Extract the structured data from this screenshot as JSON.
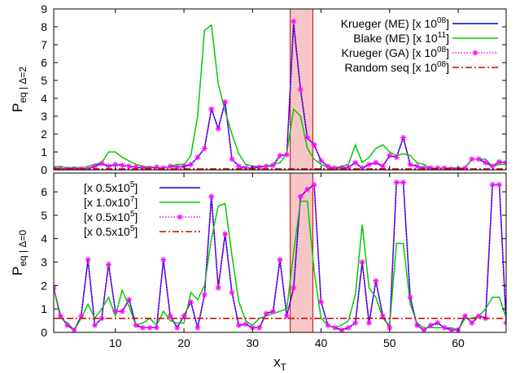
{
  "chart_data": [
    {
      "type": "line",
      "panel": "top",
      "ylabel": "P",
      "ylabel_sub": "eq | Δ=2",
      "xlim": [
        1,
        67
      ],
      "ylim": [
        0,
        9
      ],
      "yticks": [
        "0",
        "1",
        "2",
        "3",
        "4",
        "5",
        "6",
        "7",
        "8",
        "9"
      ],
      "highlight_band": [
        35.5,
        38.8
      ],
      "legend_position": "top-right",
      "series": [
        {
          "name": "Krueger (ME) [x 10^08]",
          "name_parts": [
            "Krueger (ME) [x 10",
            "08",
            "]"
          ],
          "color": "#0000cc",
          "style": "solid",
          "x": [
            1,
            2,
            3,
            4,
            5,
            6,
            7,
            8,
            9,
            10,
            11,
            12,
            13,
            14,
            15,
            16,
            17,
            18,
            19,
            20,
            21,
            22,
            23,
            24,
            25,
            26,
            27,
            28,
            29,
            30,
            31,
            32,
            33,
            34,
            35,
            36,
            37,
            38,
            39,
            40,
            41,
            42,
            43,
            44,
            45,
            46,
            47,
            48,
            49,
            50,
            51,
            52,
            53,
            54,
            55,
            56,
            57,
            58,
            59,
            60,
            61,
            62,
            63,
            64,
            65,
            66,
            67
          ],
          "y": [
            0.1,
            0.05,
            0.05,
            0.05,
            0.05,
            0.05,
            0.2,
            0.35,
            0.2,
            0.3,
            0.25,
            0.2,
            0.15,
            0.1,
            0.1,
            0.15,
            0.1,
            0.2,
            0.15,
            0.2,
            0.3,
            0.7,
            1.2,
            3.4,
            2.3,
            3.8,
            0.6,
            0.2,
            0.1,
            0.1,
            0.15,
            0.2,
            0.25,
            0.8,
            0.85,
            8.2,
            4.5,
            1.8,
            1.4,
            0.5,
            0.2,
            0.1,
            0.1,
            0.15,
            0.4,
            0.1,
            0.3,
            0.4,
            0.2,
            0.8,
            0.7,
            1.8,
            0.3,
            0.2,
            0.1,
            0.1,
            0.1,
            0.1,
            0.05,
            0.05,
            0.1,
            0.6,
            0.6,
            0.4,
            0.2,
            0.45,
            0.4
          ]
        },
        {
          "name": "Blake (ME) [x 10^11]",
          "name_parts": [
            "Blake (ME) [x 10",
            "11",
            "]"
          ],
          "color": "#00cc00",
          "style": "solid",
          "x": [
            1,
            2,
            3,
            4,
            5,
            6,
            7,
            8,
            9,
            10,
            11,
            12,
            13,
            14,
            15,
            16,
            17,
            18,
            19,
            20,
            21,
            22,
            23,
            24,
            25,
            26,
            27,
            28,
            29,
            30,
            31,
            32,
            33,
            34,
            35,
            36,
            37,
            38,
            39,
            40,
            41,
            42,
            43,
            44,
            45,
            46,
            47,
            48,
            49,
            50,
            51,
            52,
            53,
            54,
            55,
            56,
            57,
            58,
            59,
            60,
            61,
            62,
            63,
            64,
            65,
            66,
            67
          ],
          "y": [
            0.15,
            0.2,
            0.1,
            0.15,
            0.1,
            0.2,
            0.3,
            0.4,
            1.0,
            1.0,
            0.7,
            0.5,
            0.3,
            0.2,
            0.15,
            0.15,
            0.1,
            0.2,
            0.3,
            0.3,
            0.8,
            3.0,
            7.8,
            8.1,
            4.8,
            3.3,
            2.0,
            0.9,
            0.3,
            0.2,
            0.2,
            0.2,
            0.3,
            0.4,
            0.9,
            3.4,
            3.0,
            1.2,
            0.6,
            0.3,
            0.15,
            0.1,
            0.2,
            0.3,
            1.4,
            0.4,
            0.7,
            1.2,
            1.4,
            1.0,
            0.8,
            0.9,
            0.8,
            0.4,
            0.3,
            0.1,
            0.1,
            0.1,
            0.1,
            0.1,
            0.1,
            0.6,
            0.6,
            0.6,
            0.2,
            0.3,
            0.3
          ]
        },
        {
          "name": "Krueger (GA) [x 10^08]",
          "name_parts": [
            "Krueger (GA) [x 10",
            "08",
            "]"
          ],
          "color": "#ff00ff",
          "style": "dotted-markers",
          "x": [
            1,
            2,
            3,
            4,
            5,
            6,
            7,
            8,
            9,
            10,
            11,
            12,
            13,
            14,
            15,
            16,
            17,
            18,
            19,
            20,
            21,
            22,
            23,
            24,
            25,
            26,
            27,
            28,
            29,
            30,
            31,
            32,
            33,
            34,
            35,
            36,
            37,
            38,
            39,
            40,
            41,
            42,
            43,
            44,
            45,
            46,
            47,
            48,
            49,
            50,
            51,
            52,
            53,
            54,
            55,
            56,
            57,
            58,
            59,
            60,
            61,
            62,
            63,
            64,
            65,
            66,
            67
          ],
          "y": [
            0.1,
            0.05,
            0.05,
            0.05,
            0.05,
            0.05,
            0.2,
            0.35,
            0.2,
            0.3,
            0.25,
            0.2,
            0.15,
            0.1,
            0.1,
            0.15,
            0.1,
            0.2,
            0.15,
            0.2,
            0.3,
            0.7,
            1.2,
            3.4,
            2.3,
            3.8,
            0.6,
            0.2,
            0.1,
            0.1,
            0.15,
            0.2,
            0.25,
            0.8,
            0.85,
            8.3,
            4.5,
            1.8,
            1.4,
            0.5,
            0.2,
            0.1,
            0.1,
            0.15,
            0.4,
            0.1,
            0.3,
            0.4,
            0.2,
            0.8,
            0.7,
            1.8,
            0.3,
            0.2,
            0.1,
            0.1,
            0.1,
            0.1,
            0.05,
            0.05,
            0.1,
            0.6,
            0.6,
            0.4,
            0.2,
            0.45,
            0.4
          ]
        },
        {
          "name": "Random seq [x 10^08]",
          "name_parts": [
            "Random seq [x 10",
            "08",
            "]"
          ],
          "color": "#cc0000",
          "style": "dashdot",
          "x": [
            1,
            67
          ],
          "y": [
            0.05,
            0.05
          ]
        }
      ]
    },
    {
      "type": "line",
      "panel": "bottom",
      "ylabel": "P",
      "ylabel_sub": "eq | Δ=0",
      "xlabel": "x",
      "xlabel_sub": "T",
      "xlim": [
        1,
        67
      ],
      "ylim": [
        0,
        6.8
      ],
      "xticks": [
        "10",
        "20",
        "30",
        "40",
        "50",
        "60"
      ],
      "xtick_values": [
        10,
        20,
        30,
        40,
        50,
        60
      ],
      "yticks": [
        "0",
        "1",
        "2",
        "3",
        "4",
        "5",
        "6"
      ],
      "highlight_band": [
        35.5,
        38.8
      ],
      "legend_position": "top-left",
      "series": [
        {
          "name": "[x 0.5x10^5]",
          "name_parts": [
            "[x 0.5x10",
            "5",
            "]"
          ],
          "color": "#0000cc",
          "style": "solid",
          "x": [
            1,
            2,
            3,
            4,
            5,
            6,
            7,
            8,
            9,
            10,
            11,
            12,
            13,
            14,
            15,
            16,
            17,
            18,
            19,
            20,
            21,
            22,
            23,
            24,
            25,
            26,
            27,
            28,
            29,
            30,
            31,
            32,
            33,
            34,
            35,
            36,
            37,
            38,
            39,
            40,
            41,
            42,
            43,
            44,
            45,
            46,
            47,
            48,
            49,
            50,
            51,
            52,
            53,
            54,
            55,
            56,
            57,
            58,
            59,
            60,
            61,
            62,
            63,
            64,
            65,
            66,
            67
          ],
          "y": [
            1.9,
            0.7,
            0.3,
            0.1,
            0.7,
            3.1,
            0.3,
            0.6,
            2.9,
            0.9,
            0.9,
            1.4,
            0.3,
            0.2,
            0.2,
            0.2,
            3.1,
            0.7,
            0.2,
            0.7,
            1.3,
            0.2,
            1.6,
            5.8,
            1.9,
            4.2,
            1.7,
            0.3,
            0.35,
            0.2,
            0.2,
            0.8,
            0.9,
            3.1,
            0.7,
            1.9,
            5.8,
            6.1,
            6.3,
            1.3,
            0.3,
            0.2,
            0.1,
            0.2,
            0.4,
            3.0,
            0.4,
            2.2,
            0.7,
            0.2,
            6.4,
            6.4,
            1.5,
            0.3,
            0.1,
            0.3,
            0.4,
            0.2,
            0.1,
            0.1,
            0.7,
            0.4,
            0.7,
            0.6,
            6.3,
            6.3,
            0.4
          ]
        },
        {
          "name": "[x 1.0x10^7]",
          "name_parts": [
            "[x 1.0x10",
            "7",
            "]"
          ],
          "color": "#00cc00",
          "style": "solid",
          "x": [
            1,
            2,
            3,
            4,
            5,
            6,
            7,
            8,
            9,
            10,
            11,
            12,
            13,
            14,
            15,
            16,
            17,
            18,
            19,
            20,
            21,
            22,
            23,
            24,
            25,
            26,
            27,
            28,
            29,
            30,
            31,
            32,
            33,
            34,
            35,
            36,
            37,
            38,
            39,
            40,
            41,
            42,
            43,
            44,
            45,
            46,
            47,
            48,
            49,
            50,
            51,
            52,
            53,
            54,
            55,
            56,
            57,
            58,
            59,
            60,
            61,
            62,
            63,
            64,
            65,
            66,
            67
          ],
          "y": [
            1.9,
            0.6,
            0.4,
            0.1,
            0.6,
            1.2,
            0.6,
            1.0,
            1.5,
            0.7,
            1.8,
            1.1,
            0.3,
            0.4,
            0.6,
            0.3,
            0.9,
            0.5,
            0.4,
            0.4,
            1.7,
            1.4,
            2.0,
            4.0,
            5.4,
            5.5,
            3.3,
            1.3,
            0.5,
            0.3,
            0.6,
            0.7,
            0.8,
            0.9,
            1.0,
            3.4,
            5.6,
            5.6,
            2.6,
            0.6,
            0.3,
            0.2,
            0.3,
            0.5,
            1.6,
            4.6,
            1.9,
            1.5,
            0.6,
            0.3,
            3.8,
            3.8,
            1.2,
            0.4,
            0.2,
            0.2,
            0.2,
            0.2,
            0.2,
            0.1,
            0.6,
            0.6,
            0.7,
            1.0,
            1.5,
            1.5,
            0.6
          ]
        },
        {
          "name": "[x 0.5x10^5]",
          "name_parts": [
            "[x 0.5x10",
            "5",
            "]"
          ],
          "color": "#ff00ff",
          "style": "dotted-markers",
          "x": [
            1,
            2,
            3,
            4,
            5,
            6,
            7,
            8,
            9,
            10,
            11,
            12,
            13,
            14,
            15,
            16,
            17,
            18,
            19,
            20,
            21,
            22,
            23,
            24,
            25,
            26,
            27,
            28,
            29,
            30,
            31,
            32,
            33,
            34,
            35,
            36,
            37,
            38,
            39,
            40,
            41,
            42,
            43,
            44,
            45,
            46,
            47,
            48,
            49,
            50,
            51,
            52,
            53,
            54,
            55,
            56,
            57,
            58,
            59,
            60,
            61,
            62,
            63,
            64,
            65,
            66,
            67
          ],
          "y": [
            1.9,
            0.7,
            0.3,
            0.1,
            0.7,
            3.1,
            0.3,
            0.6,
            2.9,
            0.9,
            0.9,
            1.4,
            0.3,
            0.2,
            0.2,
            0.2,
            3.1,
            0.7,
            0.2,
            0.7,
            1.3,
            0.2,
            1.6,
            5.8,
            1.9,
            4.2,
            1.7,
            0.3,
            0.35,
            0.2,
            0.2,
            0.8,
            0.9,
            3.1,
            0.7,
            1.9,
            5.8,
            6.1,
            6.3,
            1.3,
            0.3,
            0.2,
            0.1,
            0.2,
            0.4,
            3.0,
            0.4,
            2.2,
            0.7,
            0.2,
            6.4,
            6.4,
            1.5,
            0.3,
            0.1,
            0.3,
            0.4,
            0.2,
            0.1,
            0.1,
            0.7,
            0.4,
            0.7,
            0.6,
            6.3,
            6.3,
            0.4
          ]
        },
        {
          "name": "[x 0.5x10^5]",
          "name_parts": [
            "[x 0.5x10",
            "5",
            "]"
          ],
          "color": "#cc0000",
          "style": "dashdot",
          "x": [
            1,
            67
          ],
          "y": [
            0.6,
            0.6
          ]
        }
      ]
    }
  ]
}
